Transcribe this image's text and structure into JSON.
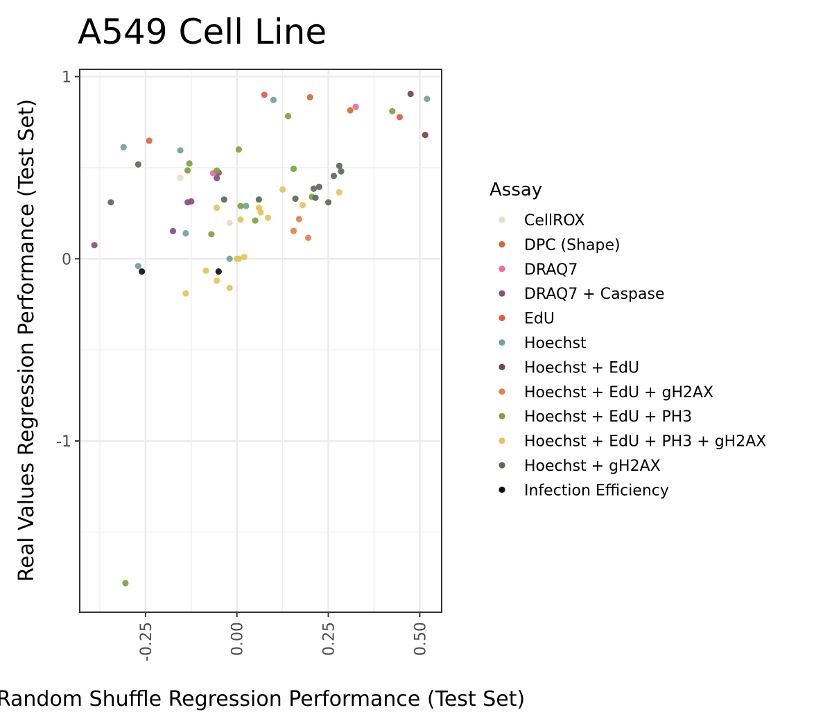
{
  "chart_data": {
    "type": "scatter",
    "title": "A549 Cell Line",
    "xlabel": "Random Shuffle Regression Performance (Test Set)",
    "ylabel": "Real Values Regression Performance (Test Set)",
    "xlim": [
      -0.43,
      0.56
    ],
    "ylim": [
      -1.94,
      1.04
    ],
    "x_ticks": [
      -0.25,
      0.0,
      0.25,
      0.5
    ],
    "x_tick_labels": [
      "-0.25",
      "0.00",
      "0.25",
      "0.50"
    ],
    "y_ticks": [
      -1,
      0,
      1
    ],
    "y_tick_labels": [
      "-1",
      "0",
      "1"
    ],
    "grid": true,
    "legend": {
      "title": "Assay",
      "position": "right",
      "entries": [
        {
          "name": "CellROX",
          "color": "#E8DCC4"
        },
        {
          "name": "DPC (Shape)",
          "color": "#D26A3B"
        },
        {
          "name": "DRAQ7",
          "color": "#EE6B99"
        },
        {
          "name": "DRAQ7 + Caspase",
          "color": "#84507E"
        },
        {
          "name": "EdU",
          "color": "#E3594A"
        },
        {
          "name": "Hoechst",
          "color": "#6FA39B"
        },
        {
          "name": "Hoechst + EdU",
          "color": "#744549"
        },
        {
          "name": "Hoechst + EdU + gH2AX",
          "color": "#E4804F"
        },
        {
          "name": "Hoechst + EdU + PH3",
          "color": "#7EA23F"
        },
        {
          "name": "Hoechst + EdU + PH3 + gH2AX",
          "color": "#E4C45A"
        },
        {
          "name": "Hoechst + gH2AX",
          "color": "#5D685B"
        },
        {
          "name": "Infection Efficiency",
          "color": "#111111"
        }
      ]
    },
    "series": [
      {
        "name": "CellROX",
        "points": [
          [
            -0.155,
            0.445
          ],
          [
            -0.02,
            0.197
          ]
        ]
      },
      {
        "name": "DPC (Shape)",
        "points": [
          [
            -0.24,
            0.648
          ],
          [
            0.2,
            0.887
          ],
          [
            0.31,
            0.815
          ]
        ]
      },
      {
        "name": "DRAQ7",
        "points": [
          [
            -0.065,
            0.47
          ],
          [
            0.325,
            0.834
          ]
        ]
      },
      {
        "name": "DRAQ7 + Caspase",
        "points": [
          [
            -0.39,
            0.075
          ],
          [
            -0.175,
            0.152
          ],
          [
            -0.125,
            0.315
          ],
          [
            -0.135,
            0.31
          ],
          [
            -0.05,
            0.473
          ],
          [
            -0.055,
            0.443
          ]
        ]
      },
      {
        "name": "EdU",
        "points": [
          [
            0.075,
            0.9
          ],
          [
            0.445,
            0.778
          ]
        ]
      },
      {
        "name": "Hoechst",
        "points": [
          [
            -0.31,
            0.613
          ],
          [
            -0.155,
            0.595
          ],
          [
            -0.14,
            0.14
          ],
          [
            -0.27,
            -0.04
          ],
          [
            -0.02,
            0.0
          ],
          [
            0.025,
            0.29
          ],
          [
            0.1,
            0.872
          ],
          [
            0.52,
            0.878
          ]
        ]
      },
      {
        "name": "Hoechst + EdU",
        "points": [
          [
            0.475,
            0.905
          ],
          [
            0.515,
            0.68
          ]
        ]
      },
      {
        "name": "Hoechst + EdU + gH2AX",
        "points": [
          [
            0.155,
            0.153
          ],
          [
            0.17,
            0.218
          ],
          [
            0.195,
            0.115
          ]
        ]
      },
      {
        "name": "Hoechst + EdU + PH3",
        "points": [
          [
            -0.305,
            -1.78
          ],
          [
            -0.13,
            0.523
          ],
          [
            -0.135,
            0.485
          ],
          [
            -0.07,
            0.135
          ],
          [
            -0.055,
            0.484
          ],
          [
            0.005,
            0.6
          ],
          [
            0.01,
            0.29
          ],
          [
            0.05,
            0.21
          ],
          [
            0.14,
            0.783
          ],
          [
            0.155,
            0.494
          ],
          [
            0.205,
            0.34
          ],
          [
            0.425,
            0.81
          ]
        ]
      },
      {
        "name": "Hoechst + EdU + PH3 + gH2AX",
        "points": [
          [
            -0.14,
            -0.19
          ],
          [
            -0.085,
            -0.065
          ],
          [
            -0.055,
            0.28
          ],
          [
            -0.055,
            -0.12
          ],
          [
            -0.02,
            -0.16
          ],
          [
            0.0,
            0.0
          ],
          [
            0.005,
            0.0
          ],
          [
            0.01,
            0.215
          ],
          [
            0.02,
            0.01
          ],
          [
            0.06,
            0.28
          ],
          [
            0.065,
            0.255
          ],
          [
            0.085,
            0.225
          ],
          [
            0.125,
            0.38
          ],
          [
            0.18,
            0.295
          ],
          [
            0.28,
            0.365
          ]
        ]
      },
      {
        "name": "Hoechst + gH2AX",
        "points": [
          [
            -0.345,
            0.31
          ],
          [
            -0.27,
            0.518
          ],
          [
            -0.035,
            0.325
          ],
          [
            0.06,
            0.325
          ],
          [
            0.16,
            0.33
          ],
          [
            0.21,
            0.385
          ],
          [
            0.215,
            0.335
          ],
          [
            0.225,
            0.395
          ],
          [
            0.25,
            0.31
          ],
          [
            0.265,
            0.455
          ],
          [
            0.28,
            0.51
          ],
          [
            0.285,
            0.48
          ]
        ]
      },
      {
        "name": "Infection Efficiency",
        "points": [
          [
            -0.26,
            -0.07
          ],
          [
            -0.05,
            -0.07
          ]
        ]
      }
    ]
  }
}
